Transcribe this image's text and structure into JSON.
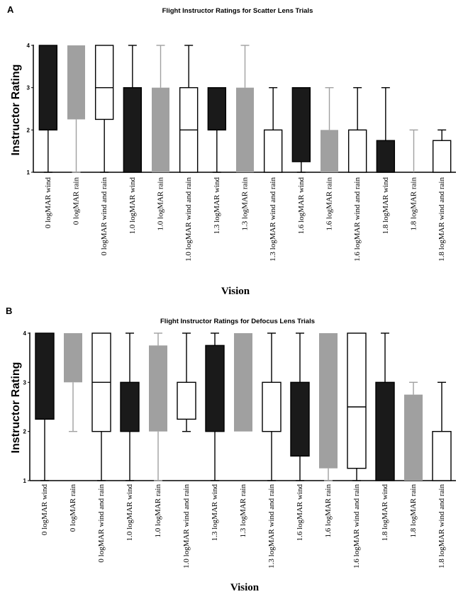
{
  "colors": {
    "wind": "#1a1a1a",
    "rain": "#a0a0a0",
    "windrain": "#ffffff",
    "stroke": "#000000"
  },
  "chart_data": [
    {
      "panel": "A",
      "type": "box",
      "title": "Flight Instructor Ratings for Scatter Lens Trials",
      "xlabel": "Vision",
      "ylabel": "Instructor Rating",
      "ylim": [
        1,
        4
      ],
      "yticks": [
        "1",
        "2",
        "3",
        "4"
      ],
      "categories": [
        "0 logMAR wind",
        "0 logMAR rain",
        "0 logMAR wind and rain",
        "1.0 logMAR wind",
        "1.0 logMAR rain",
        "1.0 logMAR wind and rain",
        "1.3 logMAR wind",
        "1.3 logMAR rain",
        "1.3 logMAR wind and rain",
        "1.6 logMAR wind",
        "1.6 logMAR rain",
        "1.6 logMAR wind and rain",
        "1.8 logMAR wind",
        "1.8 logMAR rain",
        "1.8 logMAR wind and rain"
      ],
      "conditions": [
        "wind",
        "rain",
        "windrain",
        "wind",
        "rain",
        "windrain",
        "wind",
        "rain",
        "windrain",
        "wind",
        "rain",
        "windrain",
        "wind",
        "rain",
        "windrain"
      ],
      "boxes": [
        {
          "min": 1,
          "q1": 2,
          "median": 4,
          "q3": 4,
          "max": 4
        },
        {
          "min": 1,
          "q1": 2.25,
          "median": 4,
          "q3": 4,
          "max": 4
        },
        {
          "min": 1,
          "q1": 2.25,
          "median": 3,
          "q3": 4,
          "max": 4
        },
        {
          "min": 1,
          "q1": 1,
          "median": 1,
          "q3": 3,
          "max": 4
        },
        {
          "min": 1,
          "q1": 1,
          "median": 1,
          "q3": 3,
          "max": 4
        },
        {
          "min": 1,
          "q1": 1,
          "median": 2,
          "q3": 3,
          "max": 4
        },
        {
          "min": 1,
          "q1": 2,
          "median": 3,
          "q3": 3,
          "max": 3
        },
        {
          "min": 1,
          "q1": 1,
          "median": 1,
          "q3": 3,
          "max": 4
        },
        {
          "min": 1,
          "q1": 1,
          "median": 1,
          "q3": 2,
          "max": 3
        },
        {
          "min": 1,
          "q1": 1.25,
          "median": 3,
          "q3": 3,
          "max": 3
        },
        {
          "min": 1,
          "q1": 1,
          "median": 1,
          "q3": 2,
          "max": 3
        },
        {
          "min": 1,
          "q1": 1,
          "median": 1,
          "q3": 2,
          "max": 3
        },
        {
          "min": 1,
          "q1": 1,
          "median": 1,
          "q3": 1.75,
          "max": 3
        },
        {
          "min": 1,
          "q1": 1,
          "median": 1,
          "q3": 1,
          "max": 2
        },
        {
          "min": 1,
          "q1": 1,
          "median": 1,
          "q3": 1.75,
          "max": 2
        }
      ]
    },
    {
      "panel": "B",
      "type": "box",
      "title": "Flight Instructor Ratings for Defocus Lens Trials",
      "xlabel": "Vision",
      "ylabel": "Instructor Rating",
      "ylim": [
        1,
        4
      ],
      "yticks": [
        "1",
        "2",
        "3",
        "4"
      ],
      "categories": [
        "0 logMAR wind",
        "0 logMAR rain",
        "0 logMAR wind and rain",
        "1.0 logMAR wind",
        "1.0 logMAR rain",
        "1.0 logMAR wind and rain",
        "1.3 logMAR wind",
        "1.3 logMAR rain",
        "1.3 logMAR wind and rain",
        "1.6 logMAR wind",
        "1.6 logMAR rain",
        "1.6 logMAR wind and rain",
        "1.8 logMAR wind",
        "1.8 logMAR rain",
        "1.8 logMAR wind and rain"
      ],
      "conditions": [
        "wind",
        "rain",
        "windrain",
        "wind",
        "rain",
        "windrain",
        "wind",
        "rain",
        "windrain",
        "wind",
        "rain",
        "windrain",
        "wind",
        "rain",
        "windrain"
      ],
      "boxes": [
        {
          "min": 1,
          "q1": 2.25,
          "median": 4,
          "q3": 4,
          "max": 4
        },
        {
          "min": 2,
          "q1": 3,
          "median": 4,
          "q3": 4,
          "max": 4
        },
        {
          "min": 1,
          "q1": 2,
          "median": 3,
          "q3": 4,
          "max": 4
        },
        {
          "min": 1,
          "q1": 2,
          "median": 3,
          "q3": 3,
          "max": 4
        },
        {
          "min": 1,
          "q1": 2,
          "median": 2,
          "q3": 3.75,
          "max": 4
        },
        {
          "min": 2,
          "q1": 2.25,
          "median": 3,
          "q3": 3,
          "max": 4
        },
        {
          "min": 1,
          "q1": 2,
          "median": 3.75,
          "q3": 3.75,
          "max": 4
        },
        {
          "min": 2,
          "q1": 2,
          "median": 4,
          "q3": 4,
          "max": 4
        },
        {
          "min": 1,
          "q1": 2,
          "median": 2,
          "q3": 3,
          "max": 4
        },
        {
          "min": 1,
          "q1": 1.5,
          "median": 3,
          "q3": 3,
          "max": 4
        },
        {
          "min": 1,
          "q1": 1.25,
          "median": 4,
          "q3": 4,
          "max": 4
        },
        {
          "min": 1,
          "q1": 1.25,
          "median": 2.5,
          "q3": 4,
          "max": 4
        },
        {
          "min": 1,
          "q1": 1,
          "median": 3,
          "q3": 3,
          "max": 4
        },
        {
          "min": 1,
          "q1": 1,
          "median": 2.75,
          "q3": 2.75,
          "max": 3
        },
        {
          "min": 1,
          "q1": 1,
          "median": 1,
          "q3": 2,
          "max": 3
        }
      ]
    }
  ]
}
